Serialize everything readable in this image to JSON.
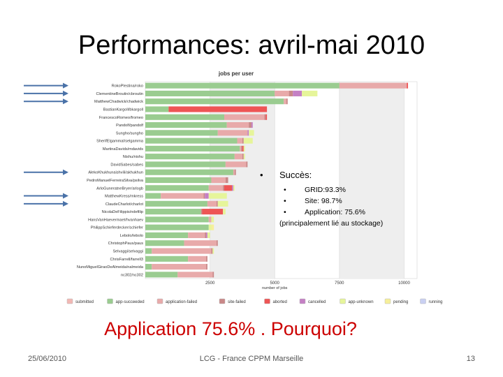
{
  "slide": {
    "title": "Performances: avril-mai 2010",
    "success_heading": "Succès:",
    "bullet": "•",
    "success_items": [
      "GRID:93.3%",
      "Site: 98.7%",
      "Application: 75.6%"
    ],
    "success_note": "(principalement lié au stockage)",
    "question": "Application 75.6% . Pourquoi?",
    "footer_date": "25/06/2010",
    "footer_center": "LCG - France CPPM Marseille",
    "footer_page": "13"
  },
  "chart_data": {
    "type": "bar",
    "orientation": "horizontal",
    "stacked": true,
    "title": "jobs per user",
    "xlabel": "number of jobs",
    "xlim": [
      0,
      10500
    ],
    "xticks": [
      2500,
      5000,
      7500,
      10000
    ],
    "grid": true,
    "legend_position": "bottom",
    "categories": [
      "RokoPlestina/roko",
      "ClementineBroutin/cbroutin",
      "MatthewChadwick/chadwick",
      "BastianKargoll/bkargoll",
      "FrancescoRomeo/fromeo",
      "Pandolf/pandolf",
      "Sungho/sungho",
      "SherifElgammal/selgamma",
      "MartinaDavids/mdavids",
      "Nishu/nishu",
      "DavidSabes/sabes",
      "AlekoKhukhunaishvili/akhukhun",
      "PedroManuelFerreiraSilva/psilva",
      "ArloGuneratneBryer/arlogb",
      "MatthewKress/mkress",
      "ClaudeCharlot/charlot",
      "NicolaDeFilippis/ndefilip",
      "HansVanHaevermaet/hvanhaev",
      "PhilippSchieferdecker/schiefer",
      "Lebolo/lebolo",
      "ChristophPaus/paus",
      "Selvaggi/selvaggi",
      "ChrisFarrell/farrell3",
      "NunoMiguelGiraoDeAlmeida/nalmeida",
      "nc302/nc302"
    ],
    "series": [
      {
        "name": "submitted",
        "color": "#f2b8b4",
        "values": [
          0,
          0,
          0,
          0,
          0,
          0,
          0,
          0,
          0,
          0,
          0,
          0,
          0,
          0,
          0,
          0,
          0,
          0,
          0,
          0,
          0,
          0,
          0,
          0,
          0
        ]
      },
      {
        "name": "app-succeeded",
        "color": "#9acc90",
        "values": [
          7500,
          5000,
          5350,
          900,
          3050,
          3150,
          2800,
          3550,
          3650,
          3450,
          3100,
          3400,
          2550,
          2450,
          600,
          2400,
          2150,
          2450,
          2450,
          1650,
          1500,
          250,
          1650,
          250,
          1250
        ]
      },
      {
        "name": "application-failed",
        "color": "#e8aaaa",
        "values": [
          2600,
          550,
          100,
          0,
          1550,
          850,
          1150,
          200,
          50,
          300,
          800,
          50,
          550,
          550,
          1650,
          350,
          0,
          100,
          0,
          650,
          1250,
          2300,
          700,
          2100,
          1350
        ]
      },
      {
        "name": "site-failed",
        "color": "#c98888",
        "values": [
          0,
          150,
          50,
          0,
          50,
          100,
          0,
          50,
          50,
          50,
          50,
          50,
          100,
          50,
          50,
          50,
          50,
          0,
          0,
          50,
          50,
          50,
          50,
          50,
          50
        ]
      },
      {
        "name": "aborted",
        "color": "#ee5555",
        "values": [
          50,
          0,
          0,
          3800,
          50,
          0,
          0,
          0,
          50,
          0,
          0,
          0,
          0,
          300,
          0,
          0,
          800,
          0,
          0,
          0,
          0,
          0,
          0,
          0,
          0
        ]
      },
      {
        "name": "cancelled",
        "color": "#c480c4",
        "values": [
          0,
          350,
          0,
          0,
          0,
          50,
          50,
          0,
          0,
          0,
          0,
          0,
          0,
          50,
          150,
          0,
          0,
          0,
          0,
          50,
          0,
          0,
          0,
          0,
          0
        ]
      },
      {
        "name": "app-unknown",
        "color": "#e6f59a",
        "values": [
          0,
          600,
          0,
          0,
          0,
          0,
          200,
          350,
          50,
          50,
          0,
          0,
          0,
          50,
          700,
          400,
          100,
          100,
          100,
          100,
          0,
          50,
          0,
          0,
          0
        ]
      },
      {
        "name": "pending",
        "color": "#f6ef9a",
        "values": [
          0,
          0,
          0,
          0,
          0,
          0,
          0,
          0,
          0,
          0,
          0,
          0,
          0,
          0,
          0,
          0,
          0,
          0,
          100,
          0,
          0,
          0,
          0,
          0,
          0
        ]
      },
      {
        "name": "running",
        "color": "#c9d0f2",
        "values": [
          0,
          0,
          0,
          0,
          0,
          0,
          0,
          0,
          0,
          0,
          0,
          0,
          0,
          0,
          0,
          0,
          0,
          0,
          0,
          0,
          0,
          0,
          0,
          0,
          0
        ]
      }
    ],
    "highlight_arrows": [
      "RokoPlestina/roko",
      "ClementineBroutin/cbroutin",
      "MatthewChadwick/chadwick",
      "AlekoKhukhunaishvili/akhukhun",
      "MatthewKress/mkress",
      "ClaudeCharlot/charlot"
    ]
  }
}
